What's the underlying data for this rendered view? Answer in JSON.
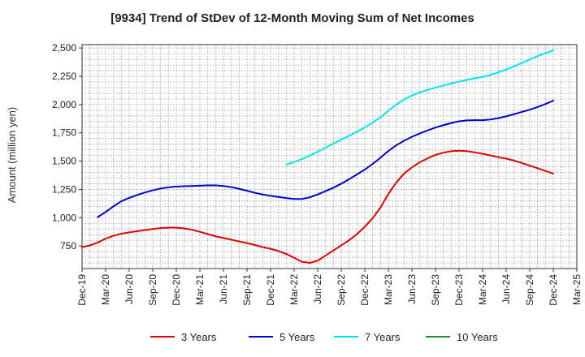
{
  "chart_data": {
    "type": "line",
    "title": "[9934]  Trend of StDev of 12-Month Moving Sum of Net Incomes",
    "ylabel": "Amount (million yen)",
    "xlabel": "",
    "x_start": "Dec-19",
    "x_tick_labels": [
      "Dec-19",
      "Mar-20",
      "Jun-20",
      "Sep-20",
      "Dec-20",
      "Mar-21",
      "Jun-21",
      "Sep-21",
      "Dec-21",
      "Mar-22",
      "Jun-22",
      "Sep-22",
      "Dec-22",
      "Mar-23",
      "Jun-23",
      "Sep-23",
      "Dec-23",
      "Mar-24",
      "Jun-24",
      "Sep-24",
      "Dec-24",
      "Mar-25"
    ],
    "y_ticks": [
      750,
      1000,
      1250,
      1500,
      1750,
      2000,
      2250,
      2500
    ],
    "y_tick_labels": [
      "750",
      "1,000",
      "1,250",
      "1,500",
      "1,750",
      "2,000",
      "2,250",
      "2,500"
    ],
    "ylim": [
      550,
      2530
    ],
    "grid": true,
    "legend_position": "bottom",
    "series": [
      {
        "name": "3 Years",
        "color": "#dd0000",
        "points": [
          [
            "Dec-19",
            740
          ],
          [
            "Jan-20",
            755
          ],
          [
            "Feb-20",
            780
          ],
          [
            "Mar-20",
            815
          ],
          [
            "Apr-20",
            840
          ],
          [
            "May-20",
            858
          ],
          [
            "Jun-20",
            870
          ],
          [
            "Jul-20",
            880
          ],
          [
            "Aug-20",
            890
          ],
          [
            "Sep-20",
            900
          ],
          [
            "Oct-20",
            908
          ],
          [
            "Nov-20",
            912
          ],
          [
            "Dec-20",
            912
          ],
          [
            "Jan-21",
            905
          ],
          [
            "Feb-21",
            893
          ],
          [
            "Mar-21",
            875
          ],
          [
            "Apr-21",
            855
          ],
          [
            "May-21",
            835
          ],
          [
            "Jun-21",
            820
          ],
          [
            "Jul-21",
            805
          ],
          [
            "Aug-21",
            790
          ],
          [
            "Sep-21",
            775
          ],
          [
            "Oct-21",
            758
          ],
          [
            "Nov-21",
            740
          ],
          [
            "Dec-21",
            725
          ],
          [
            "Jan-22",
            705
          ],
          [
            "Feb-22",
            680
          ],
          [
            "Mar-22",
            645
          ],
          [
            "Apr-22",
            610
          ],
          [
            "May-22",
            600
          ],
          [
            "Jun-22",
            620
          ],
          [
            "Jul-22",
            665
          ],
          [
            "Aug-22",
            710
          ],
          [
            "Sep-22",
            755
          ],
          [
            "Oct-22",
            800
          ],
          [
            "Nov-22",
            855
          ],
          [
            "Dec-22",
            920
          ],
          [
            "Jan-23",
            995
          ],
          [
            "Feb-23",
            1090
          ],
          [
            "Mar-23",
            1210
          ],
          [
            "Apr-23",
            1310
          ],
          [
            "May-23",
            1390
          ],
          [
            "Jun-23",
            1445
          ],
          [
            "Jul-23",
            1490
          ],
          [
            "Aug-23",
            1525
          ],
          [
            "Sep-23",
            1555
          ],
          [
            "Oct-23",
            1575
          ],
          [
            "Nov-23",
            1588
          ],
          [
            "Dec-23",
            1592
          ],
          [
            "Jan-24",
            1588
          ],
          [
            "Feb-24",
            1578
          ],
          [
            "Mar-24",
            1565
          ],
          [
            "Apr-24",
            1550
          ],
          [
            "May-24",
            1535
          ],
          [
            "Jun-24",
            1522
          ],
          [
            "Jul-24",
            1505
          ],
          [
            "Aug-24",
            1483
          ],
          [
            "Sep-24",
            1460
          ],
          [
            "Oct-24",
            1437
          ],
          [
            "Nov-24",
            1413
          ],
          [
            "Dec-24",
            1390
          ]
        ]
      },
      {
        "name": "5 Years",
        "color": "#0000cc",
        "points": [
          [
            "Feb-20",
            1005
          ],
          [
            "Mar-20",
            1050
          ],
          [
            "Apr-20",
            1100
          ],
          [
            "May-20",
            1145
          ],
          [
            "Jun-20",
            1175
          ],
          [
            "Jul-20",
            1200
          ],
          [
            "Aug-20",
            1222
          ],
          [
            "Sep-20",
            1242
          ],
          [
            "Oct-20",
            1258
          ],
          [
            "Nov-20",
            1268
          ],
          [
            "Dec-20",
            1275
          ],
          [
            "Jan-21",
            1278
          ],
          [
            "Feb-21",
            1280
          ],
          [
            "Mar-21",
            1283
          ],
          [
            "Apr-21",
            1286
          ],
          [
            "May-21",
            1285
          ],
          [
            "Jun-21",
            1280
          ],
          [
            "Jul-21",
            1270
          ],
          [
            "Aug-21",
            1255
          ],
          [
            "Sep-21",
            1238
          ],
          [
            "Oct-21",
            1220
          ],
          [
            "Nov-21",
            1205
          ],
          [
            "Dec-21",
            1193
          ],
          [
            "Jan-22",
            1183
          ],
          [
            "Feb-22",
            1173
          ],
          [
            "Mar-22",
            1165
          ],
          [
            "Apr-22",
            1165
          ],
          [
            "May-22",
            1180
          ],
          [
            "Jun-22",
            1205
          ],
          [
            "Jul-22",
            1235
          ],
          [
            "Aug-22",
            1265
          ],
          [
            "Sep-22",
            1300
          ],
          [
            "Oct-22",
            1340
          ],
          [
            "Nov-22",
            1382
          ],
          [
            "Dec-22",
            1425
          ],
          [
            "Jan-23",
            1475
          ],
          [
            "Feb-23",
            1530
          ],
          [
            "Mar-23",
            1590
          ],
          [
            "Apr-23",
            1640
          ],
          [
            "May-23",
            1680
          ],
          [
            "Jun-23",
            1715
          ],
          [
            "Jul-23",
            1745
          ],
          [
            "Aug-23",
            1772
          ],
          [
            "Sep-23",
            1797
          ],
          [
            "Oct-23",
            1818
          ],
          [
            "Nov-23",
            1837
          ],
          [
            "Dec-23",
            1852
          ],
          [
            "Jan-24",
            1860
          ],
          [
            "Feb-24",
            1862
          ],
          [
            "Mar-24",
            1862
          ],
          [
            "Apr-24",
            1868
          ],
          [
            "May-24",
            1880
          ],
          [
            "Jun-24",
            1896
          ],
          [
            "Jul-24",
            1915
          ],
          [
            "Aug-24",
            1935
          ],
          [
            "Sep-24",
            1955
          ],
          [
            "Oct-24",
            1978
          ],
          [
            "Nov-24",
            2005
          ],
          [
            "Dec-24",
            2035
          ]
        ]
      },
      {
        "name": "7 Years",
        "color": "#00e5ee",
        "points": [
          [
            "Feb-22",
            1470
          ],
          [
            "Mar-22",
            1492
          ],
          [
            "Apr-22",
            1518
          ],
          [
            "May-22",
            1548
          ],
          [
            "Jun-22",
            1583
          ],
          [
            "Jul-22",
            1620
          ],
          [
            "Aug-22",
            1655
          ],
          [
            "Sep-22",
            1690
          ],
          [
            "Oct-22",
            1725
          ],
          [
            "Nov-22",
            1760
          ],
          [
            "Dec-22",
            1797
          ],
          [
            "Jan-23",
            1840
          ],
          [
            "Feb-23",
            1888
          ],
          [
            "Mar-23",
            1945
          ],
          [
            "Apr-23",
            2000
          ],
          [
            "May-23",
            2045
          ],
          [
            "Jun-23",
            2080
          ],
          [
            "Jul-23",
            2108
          ],
          [
            "Aug-23",
            2130
          ],
          [
            "Sep-23",
            2150
          ],
          [
            "Oct-23",
            2168
          ],
          [
            "Nov-23",
            2186
          ],
          [
            "Dec-23",
            2203
          ],
          [
            "Jan-24",
            2218
          ],
          [
            "Feb-24",
            2232
          ],
          [
            "Mar-24",
            2245
          ],
          [
            "Apr-24",
            2262
          ],
          [
            "May-24",
            2285
          ],
          [
            "Jun-24",
            2310
          ],
          [
            "Jul-24",
            2338
          ],
          [
            "Aug-24",
            2368
          ],
          [
            "Sep-24",
            2398
          ],
          [
            "Oct-24",
            2428
          ],
          [
            "Nov-24",
            2455
          ],
          [
            "Dec-24",
            2478
          ]
        ]
      },
      {
        "name": "10 Years",
        "color": "#228b22",
        "points": []
      }
    ]
  }
}
